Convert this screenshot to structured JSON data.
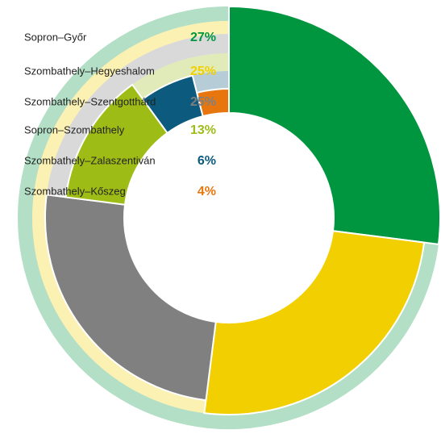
{
  "chart_data": {
    "type": "donut",
    "categories": [
      "Sopron–Győr",
      "Szombathely–Hegyeshalom",
      "Szombathely–Szentgotthárd",
      "Sopron–Szombathely",
      "Szombathely–Zalaszentiván",
      "Szombathely–Kőszeg"
    ],
    "values": [
      27,
      25,
      25,
      13,
      6,
      4
    ],
    "value_labels": [
      "27%",
      "25%",
      "25%",
      "13%",
      "6%",
      "4%"
    ],
    "colors": [
      "#009640",
      "#f2cf00",
      "#808080",
      "#9dbd16",
      "#0c5a7d",
      "#e8760f"
    ]
  }
}
